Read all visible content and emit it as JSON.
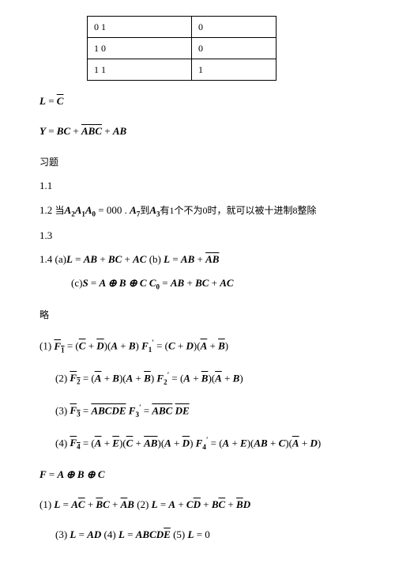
{
  "table": {
    "rows": [
      [
        "0   1",
        "0"
      ],
      [
        "1   0",
        "0"
      ],
      [
        "1   1",
        "1"
      ]
    ],
    "col_widths": [
      "115px",
      "90px"
    ],
    "border_color": "#000000"
  },
  "equations": {
    "eq_L": {
      "lhs": "L",
      "eq": " = ",
      "rhs_ov": "C"
    },
    "eq_Y": {
      "lhs": "Y",
      "eq": " = ",
      "t1": "BC",
      "plus1": " + ",
      "t2_pre": "A",
      "t2_ov": "B",
      "t2_post": "",
      "t2_ov2": "C",
      "plus2": " + ",
      "t3": "AB"
    },
    "header_xiti": "习题",
    "item_1_1": "1.1",
    "item_1_2": {
      "pre": "1.2  ",
      "mid_cn": "当",
      "A2": "A",
      "s2": "2",
      "A1": "A",
      "s1": "1",
      "A0": "A",
      "s0": "0",
      "eq": " = 000 . ",
      "A7": "A",
      "s7": "7",
      "to_cn": "到",
      "A3": "A",
      "s3": "3",
      "rest_cn": "有1个不为0时，就可以被十进制8整除"
    },
    "item_1_3": "1.3",
    "item_1_4": {
      "pre": "1.4   (a)",
      "L": "L",
      "eq": " = ",
      "t1": "AB",
      "p1": " + ",
      "t2": "BC",
      "p2": " + ",
      "t3": "AC",
      "b": "  (b) ",
      "L2": "L",
      "eq2": " = ",
      "t4": "AB",
      "p3": " + ",
      "t5_ov": "A",
      "t5_2": "B",
      "t5_ov2": ""
    },
    "item_c": {
      "pre": "(c)",
      "S": "S",
      "eq": " = ",
      "expr": "A ⊕ B ⊕ C",
      "sp": "    ",
      "C0": "C",
      "s0": "0",
      "eq2": " = ",
      "t1": "AB",
      "p1": " + ",
      "t2": "BC",
      "p2": " + ",
      "t3": "AC"
    },
    "lue": "略",
    "item_p1": {
      "pre": "(1) ",
      "F1o": "F",
      "s1": "1",
      "eq": " = (",
      "Co": "C",
      "p1": " + ",
      "Do": "D",
      "close1": ")(",
      "A": "A",
      "p2": " + ",
      "B": "B",
      "close2": ")",
      "sp": "     ",
      "F1p": "F",
      "s1b": "1",
      "prime": "′",
      "eq2": " = (",
      "C2": "C",
      "p3": " + ",
      "D2": "D",
      "close3": ")(",
      "Ao2": "A",
      "p4": " + ",
      "Bo2": "B",
      "close4": ")"
    },
    "item_p2": {
      "pre": "(2) ",
      "F2o": "F",
      "s2": "2",
      "eq": " = (",
      "Ao": "A",
      "p1": " + ",
      "B": "B",
      "close1": ")(",
      "A2": "A",
      "p2": " + ",
      "Bo2": "B",
      "close2": ")",
      "sp": "     ",
      "F2p": "F",
      "s2b": "2",
      "prime": "′",
      "eq2": " = (",
      "A3": "A",
      "p3": " + ",
      "Bo3": "B",
      "close3": ")(",
      "Ao4": "A",
      "p4": " + ",
      "B4": "B",
      "close4": ")"
    },
    "item_p3": {
      "pre": "(3) ",
      "F3o": "F",
      "s3": "3",
      "eq": " = ",
      "expr_ov": "ABCD",
      "E_ov": "E",
      "sp": "     ",
      "F3p": "F",
      "s3b": "3",
      "prime": "′",
      "eq2": " = ",
      "ov1": "ABC",
      "sp2": " ",
      "ov2": "DE"
    },
    "item_p4": {
      "pre": "(4) ",
      "F4o": "F",
      "s4": "4",
      "eq": " = (",
      "Ao": "A",
      "p1": " + ",
      "Eo": "E",
      "close1": ")(",
      "Co": "C",
      "p2": " + ",
      "ABo": "AB",
      "close2": ")(",
      "A2": "A",
      "p3": " + ",
      "Do": "D",
      "close3": ")",
      "sp": "      ",
      "F4p": "F",
      "s4b": "4",
      "prime": "′",
      "eq2": " = (",
      "A3": "A",
      "p4": " + ",
      "E2": "E",
      "close4": ")(",
      "AB2": "AB",
      "p5": " + ",
      "C2": "C",
      "close5": ")(",
      "Ao3": "A",
      "p6": " + ",
      "D2": "D",
      "close6": ")"
    },
    "eq_F": {
      "lhs": "F",
      "eq": " = ",
      "expr": "A ⊕ B ⊕ C"
    },
    "item_q1": {
      "pre": "(1) ",
      "L": "L",
      "eq": " = ",
      "t1": "A",
      "Co1": "C",
      "p1": " + ",
      "Bo2": "B",
      "t2": "C",
      "p2": " + ",
      "Ao3": "A",
      "t3": "B",
      "mid": "  (2) ",
      "L2": "L",
      "eq2": " = ",
      "A4": "A",
      "p3": " + ",
      "C5": "C",
      "Do5": "D",
      "p4": " + ",
      "B6": "B",
      "Co6": "C",
      "p5": " + ",
      "Bo7": "B",
      "D7": "D"
    },
    "item_q3": {
      "pre": "(3) ",
      "L": "L",
      "eq": " = ",
      "t1": "AD",
      "mid4": "   (4) ",
      "L4": "L",
      "eq4": " = ",
      "t4": "ABCD",
      "Eo4": "E",
      "mid5": "  (5) ",
      "L5": "L",
      "eq5": " = 0"
    }
  },
  "style": {
    "background_color": "#ffffff",
    "text_color": "#000000",
    "fontsize_body": 12,
    "fontsize_eq": 13,
    "font_family": "Times New Roman"
  }
}
